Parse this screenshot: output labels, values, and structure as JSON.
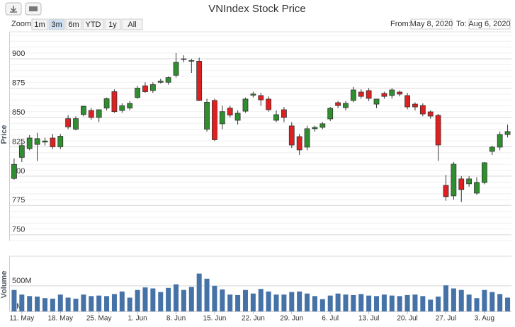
{
  "ui": {
    "zoom_label": "Zoom",
    "zoom_buttons": [
      "1m",
      "3m",
      "6m",
      "YTD",
      "1y",
      "All"
    ],
    "selected_button": 1,
    "from_label": "From:",
    "from": "May 8, 2020",
    "to_label": "To:",
    "to": "Aug 6, 2020"
  },
  "chart_data": {
    "type": "candlestick",
    "title": "VNIndex Stock Price",
    "ylabel": "Price",
    "volume_label": "Volume",
    "categories": [
      null,
      "11. May",
      null,
      null,
      null,
      null,
      "18. May",
      null,
      null,
      null,
      null,
      "25. May",
      null,
      null,
      null,
      null,
      "1. Jun",
      null,
      null,
      null,
      null,
      "8. Jun",
      null,
      null,
      null,
      null,
      "15. Jun",
      null,
      null,
      null,
      null,
      "22. Jun",
      null,
      null,
      null,
      null,
      "29. Jun",
      null,
      null,
      null,
      null,
      "6. Jul",
      null,
      null,
      null,
      null,
      "13. Jul",
      null,
      null,
      null,
      null,
      "20. Jul",
      null,
      null,
      null,
      null,
      "27. Jul",
      null,
      null,
      null,
      null,
      "3. Aug",
      null,
      null,
      null
    ],
    "open": [
      798,
      816,
      823.5,
      827,
      829,
      832.5,
      825,
      849,
      840,
      852.5,
      856,
      850,
      858,
      872,
      856,
      858,
      867,
      877,
      873,
      880,
      880,
      886,
      899.4,
      898,
      898,
      840,
      864.5,
      844.6,
      858,
      847.6,
      855.4,
      869,
      868.7,
      865.7,
      847.6,
      856.6,
      842.8,
      833.7,
      824.7,
      840.4,
      841.6,
      848.8,
      862.6,
      858.4,
      864.5,
      871.7,
      872.9,
      861.4,
      870.5,
      868.7,
      871.7,
      868.7,
      861.4,
      860.2,
      854.8,
      851.8,
      792.2,
      783.1,
      797.6,
      793.4,
      785.5,
      794.6,
      821.1,
      824.7,
      835.5
    ],
    "high": [
      815,
      829,
      835,
      837,
      833,
      836,
      836,
      852,
      851,
      860,
      858,
      857,
      867,
      874,
      862,
      864,
      877,
      880,
      880,
      883,
      885,
      905,
      903,
      900,
      901,
      866,
      866,
      860,
      860,
      856,
      867,
      872,
      871,
      868,
      856,
      859,
      846,
      836,
      843,
      843,
      846,
      859,
      864,
      864,
      876,
      874,
      875,
      866,
      872,
      875,
      873,
      871,
      863,
      862,
      856,
      853,
      801,
      812,
      800,
      800,
      799,
      812,
      826,
      838,
      844
    ],
    "low": [
      797,
      812,
      822,
      813,
      826,
      823,
      823,
      840,
      839,
      851,
      848,
      846,
      856,
      854,
      854,
      856,
      866,
      871,
      871,
      879,
      878,
      884,
      897,
      888,
      864,
      838,
      830,
      840,
      850,
      844,
      854,
      867,
      860,
      855,
      846,
      846,
      824,
      818,
      822,
      838,
      840,
      847,
      858,
      856,
      863,
      866,
      864,
      858,
      866,
      866,
      868,
      857,
      856,
      851,
      849,
      813,
      779,
      780,
      778,
      791,
      784,
      793,
      818,
      822,
      833
    ],
    "close": [
      810,
      826,
      832.5,
      832,
      830,
      825,
      834,
      842,
      849,
      859.6,
      850,
      856.6,
      866,
      855,
      860,
      862,
      875,
      872,
      878,
      881,
      884,
      897,
      900,
      898.5,
      864.5,
      863,
      831,
      855,
      852,
      853.6,
      865.7,
      870,
      865,
      856.6,
      852.4,
      850,
      826.5,
      822.3,
      840.4,
      841.6,
      844.6,
      857.8,
      860.2,
      862,
      873.5,
      868,
      866.3,
      865.7,
      868,
      873.5,
      869.9,
      859,
      859,
      853,
      851.2,
      826.5,
      782.5,
      810.2,
      788.6,
      797.6,
      794.6,
      811.4,
      824.7,
      835.5,
      838
    ],
    "volume": [
      420,
      330,
      300,
      290,
      260,
      250,
      330,
      270,
      250,
      330,
      300,
      310,
      300,
      340,
      390,
      270,
      420,
      470,
      450,
      380,
      460,
      530,
      420,
      480,
      740,
      640,
      500,
      430,
      330,
      320,
      420,
      350,
      440,
      390,
      330,
      330,
      380,
      390,
      350,
      300,
      240,
      310,
      350,
      330,
      320,
      340,
      310,
      300,
      330,
      310,
      300,
      320,
      330,
      300,
      230,
      290,
      510,
      450,
      420,
      330,
      260,
      420,
      380,
      340,
      270
    ],
    "ylim": [
      745,
      923
    ],
    "yticks": [
      750,
      775,
      800,
      825,
      850,
      875,
      900
    ],
    "minor_tick_interval": 5,
    "volume_ylim": [
      0,
      1080
    ],
    "volume_yticks": [
      {
        "value": 0,
        "label": "0M"
      },
      {
        "value": 500,
        "label": "500M"
      }
    ],
    "up_color": "#2f8f2f",
    "down_color": "#e02020",
    "volume_color": "#4572a7",
    "grid": true
  }
}
